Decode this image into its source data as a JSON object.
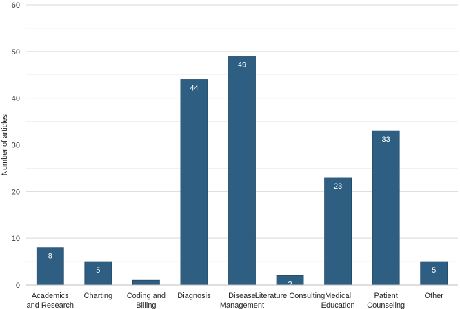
{
  "chart_data": {
    "type": "bar",
    "title": "",
    "xlabel": "",
    "ylabel": "Number of articles",
    "ylim": [
      0,
      60
    ],
    "yticks": [
      0,
      10,
      20,
      30,
      40,
      50,
      60
    ],
    "grid": true,
    "categories": [
      [
        "Academics",
        "and Research"
      ],
      [
        "Charting"
      ],
      [
        "Coding and",
        "Billing"
      ],
      [
        "Diagnosis"
      ],
      [
        "Disease",
        "Management"
      ],
      [
        "Literature Consulting"
      ],
      [
        "Medical",
        "Education"
      ],
      [
        "Patient",
        "Counseling"
      ],
      [
        "Other"
      ]
    ],
    "values": [
      8,
      5,
      1,
      44,
      49,
      2,
      23,
      33,
      5
    ],
    "data_labels": [
      "8",
      "5",
      "",
      "44",
      "49",
      "2",
      "23",
      "33",
      "5"
    ],
    "colors": {
      "bar": "#2e5f82",
      "bar_edge": "#1f4662",
      "grid": "#d9d9d9",
      "axis": "#bfbfbf",
      "label_light": "#ffffff"
    }
  }
}
